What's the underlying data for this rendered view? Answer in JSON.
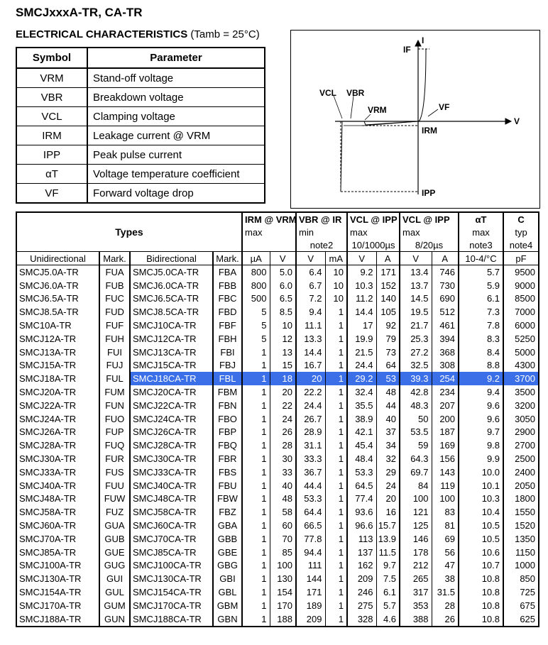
{
  "title": "SMCJxxxA-TR, CA-TR",
  "section": {
    "label": "ELECTRICAL CHARACTERISTICS",
    "condition": "(Tamb = 25°C)"
  },
  "symbol_table": {
    "headers": [
      "Symbol",
      "Parameter"
    ],
    "rows": [
      {
        "symbol": "VRM",
        "parameter": "Stand-off voltage"
      },
      {
        "symbol": "VBR",
        "parameter": "Breakdown voltage"
      },
      {
        "symbol": "VCL",
        "parameter": "Clamping voltage"
      },
      {
        "symbol": "IRM",
        "parameter": "Leakage current @ VRM"
      },
      {
        "symbol": "IPP",
        "parameter": "Peak pulse current"
      },
      {
        "symbol": "αT",
        "parameter": "Voltage temperature coefficient"
      },
      {
        "symbol": "VF",
        "parameter": "Forward voltage drop"
      }
    ]
  },
  "diagram": {
    "labels": {
      "i_axis": "I",
      "v_axis": "V",
      "if": "IF",
      "vf": "VF",
      "vcl": "VCL",
      "vbr": "VBR",
      "vrm": "VRM",
      "irm": "IRM",
      "ipp": "IPP"
    }
  },
  "main_table": {
    "header": {
      "types": "Types",
      "groups": [
        {
          "label": "IRM @ VRM",
          "qual": "max",
          "note": "",
          "units": [
            "µA",
            "V"
          ]
        },
        {
          "label": "VBR @ IR",
          "qual": "min",
          "note": "note2",
          "units": [
            "V",
            "mA"
          ]
        },
        {
          "label": "VCL @ IPP",
          "qual": "max",
          "note": "10/1000µs",
          "units": [
            "V",
            "A"
          ]
        },
        {
          "label": "VCL @ IPP",
          "qual": "max",
          "note": "8/20µs",
          "units": [
            "V",
            "A"
          ]
        },
        {
          "label": "αT",
          "qual": "max",
          "note": "note3",
          "units": [
            "10-4/°C"
          ]
        },
        {
          "label": "C",
          "qual": "typ",
          "note": "note4",
          "units": [
            "pF"
          ]
        }
      ],
      "cols": [
        "Unidirectional",
        "Mark.",
        "Bidirectional",
        "Mark."
      ]
    },
    "rows": [
      [
        "SMCJ5.0A-TR",
        "FUA",
        "SMCJ5.0CA-TR",
        "FBA",
        "800",
        "5.0",
        "6.4",
        "10",
        "9.2",
        "171",
        "13.4",
        "746",
        "5.7",
        "9500"
      ],
      [
        "SMCJ6.0A-TR",
        "FUB",
        "SMCJ6.0CA-TR",
        "FBB",
        "800",
        "6.0",
        "6.7",
        "10",
        "10.3",
        "152",
        "13.7",
        "730",
        "5.9",
        "9000"
      ],
      [
        "SMCJ6.5A-TR",
        "FUC",
        "SMCJ6.5CA-TR",
        "FBC",
        "500",
        "6.5",
        "7.2",
        "10",
        "11.2",
        "140",
        "14.5",
        "690",
        "6.1",
        "8500"
      ],
      [
        "SMCJ8.5A-TR",
        "FUD",
        "SMCJ8.5CA-TR",
        "FBD",
        "5",
        "8.5",
        "9.4",
        "1",
        "14.4",
        "105",
        "19.5",
        "512",
        "7.3",
        "7000"
      ],
      [
        "SMC10A-TR",
        "FUF",
        "SMCJ10CA-TR",
        "FBF",
        "5",
        "10",
        "11.1",
        "1",
        "17",
        "92",
        "21.7",
        "461",
        "7.8",
        "6000"
      ],
      [
        "SMCJ12A-TR",
        "FUH",
        "SMCJ12CA-TR",
        "FBH",
        "5",
        "12",
        "13.3",
        "1",
        "19.9",
        "79",
        "25.3",
        "394",
        "8.3",
        "5250"
      ],
      [
        "SMCJ13A-TR",
        "FUI",
        "SMCJ13CA-TR",
        "FBI",
        "1",
        "13",
        "14.4",
        "1",
        "21.5",
        "73",
        "27.2",
        "368",
        "8.4",
        "5000"
      ],
      [
        "SMCJ15A-TR",
        "FUJ",
        "SMCJ15CA-TR",
        "FBJ",
        "1",
        "15",
        "16.7",
        "1",
        "24.4",
        "64",
        "32.5",
        "308",
        "8.8",
        "4300"
      ],
      [
        "SMCJ18A-TR",
        "FUL",
        "SMCJ18CA-TR",
        "FBL",
        "1",
        "18",
        "20",
        "1",
        "29.2",
        "53",
        "39.3",
        "254",
        "9.2",
        "3700"
      ],
      [
        "SMCJ20A-TR",
        "FUM",
        "SMCJ20CA-TR",
        "FBM",
        "1",
        "20",
        "22.2",
        "1",
        "32.4",
        "48",
        "42.8",
        "234",
        "9.4",
        "3500"
      ],
      [
        "SMCJ22A-TR",
        "FUN",
        "SMCJ22CA-TR",
        "FBN",
        "1",
        "22",
        "24.4",
        "1",
        "35.5",
        "44",
        "48.3",
        "207",
        "9.6",
        "3200"
      ],
      [
        "SMCJ24A-TR",
        "FUO",
        "SMCJ24CA-TR",
        "FBO",
        "1",
        "24",
        "26.7",
        "1",
        "38.9",
        "40",
        "50",
        "200",
        "9.6",
        "3050"
      ],
      [
        "SMCJ26A-TR",
        "FUP",
        "SMCJ26CA-TR",
        "FBP",
        "1",
        "26",
        "28.9",
        "1",
        "42.1",
        "37",
        "53.5",
        "187",
        "9.7",
        "2900"
      ],
      [
        "SMCJ28A-TR",
        "FUQ",
        "SMCJ28CA-TR",
        "FBQ",
        "1",
        "28",
        "31.1",
        "1",
        "45.4",
        "34",
        "59",
        "169",
        "9.8",
        "2700"
      ],
      [
        "SMCJ30A-TR",
        "FUR",
        "SMCJ30CA-TR",
        "FBR",
        "1",
        "30",
        "33.3",
        "1",
        "48.4",
        "32",
        "64.3",
        "156",
        "9.9",
        "2500"
      ],
      [
        "SMCJ33A-TR",
        "FUS",
        "SMCJ33CA-TR",
        "FBS",
        "1",
        "33",
        "36.7",
        "1",
        "53.3",
        "29",
        "69.7",
        "143",
        "10.0",
        "2400"
      ],
      [
        "SMCJ40A-TR",
        "FUU",
        "SMCJ40CA-TR",
        "FBU",
        "1",
        "40",
        "44.4",
        "1",
        "64.5",
        "24",
        "84",
        "119",
        "10.1",
        "2050"
      ],
      [
        "SMCJ48A-TR",
        "FUW",
        "SMCJ48CA-TR",
        "FBW",
        "1",
        "48",
        "53.3",
        "1",
        "77.4",
        "20",
        "100",
        "100",
        "10.3",
        "1800"
      ],
      [
        "SMCJ58A-TR",
        "FUZ",
        "SMCJ58CA-TR",
        "FBZ",
        "1",
        "58",
        "64.4",
        "1",
        "93.6",
        "16",
        "121",
        "83",
        "10.4",
        "1550"
      ],
      [
        "SMCJ60A-TR",
        "GUA",
        "SMCJ60CA-TR",
        "GBA",
        "1",
        "60",
        "66.5",
        "1",
        "96.6",
        "15.7",
        "125",
        "81",
        "10.5",
        "1520"
      ],
      [
        "SMCJ70A-TR",
        "GUB",
        "SMCJ70CA-TR",
        "GBB",
        "1",
        "70",
        "77.8",
        "1",
        "113",
        "13.9",
        "146",
        "69",
        "10.5",
        "1350"
      ],
      [
        "SMCJ85A-TR",
        "GUE",
        "SMCJ85CA-TR",
        "GBE",
        "1",
        "85",
        "94.4",
        "1",
        "137",
        "11.5",
        "178",
        "56",
        "10.6",
        "1150"
      ],
      [
        "SMCJ100A-TR",
        "GUG",
        "SMCJ100CA-TR",
        "GBG",
        "1",
        "100",
        "111",
        "1",
        "162",
        "9.7",
        "212",
        "47",
        "10.7",
        "1000"
      ],
      [
        "SMCJ130A-TR",
        "GUI",
        "SMCJ130CA-TR",
        "GBI",
        "1",
        "130",
        "144",
        "1",
        "209",
        "7.5",
        "265",
        "38",
        "10.8",
        "850"
      ],
      [
        "SMCJ154A-TR",
        "GUL",
        "SMCJ154CA-TR",
        "GBL",
        "1",
        "154",
        "171",
        "1",
        "246",
        "6.1",
        "317",
        "31.5",
        "10.8",
        "725"
      ],
      [
        "SMCJ170A-TR",
        "GUM",
        "SMCJ170CA-TR",
        "GBM",
        "1",
        "170",
        "189",
        "1",
        "275",
        "5.7",
        "353",
        "28",
        "10.8",
        "675"
      ],
      [
        "SMCJ188A-TR",
        "GUN",
        "SMCJ188CA-TR",
        "GBN",
        "1",
        "188",
        "209",
        "1",
        "328",
        "4.6",
        "388",
        "26",
        "10.8",
        "625"
      ]
    ],
    "highlight_color": "#3b6fe8"
  }
}
